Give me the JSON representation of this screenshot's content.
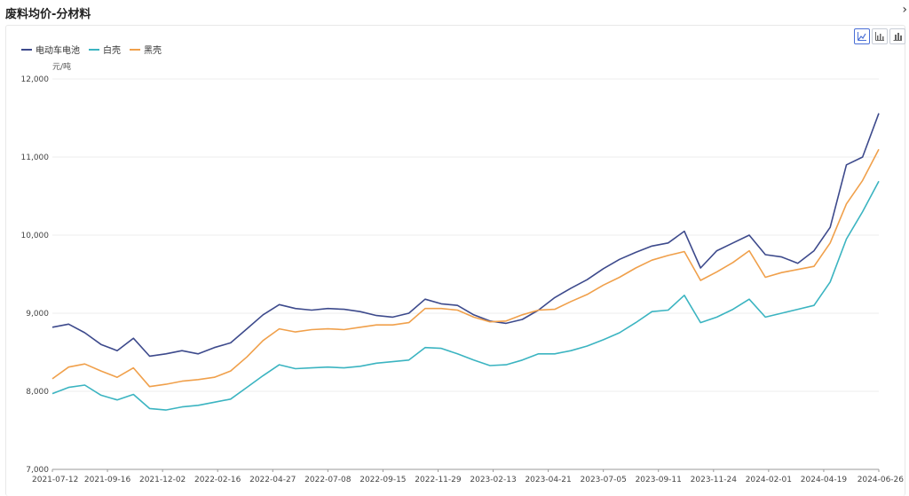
{
  "page": {
    "title": "废料均价-分材料",
    "close_icon": "close-icon"
  },
  "toolbar": {
    "buttons": [
      {
        "name": "line-chart-button",
        "icon": "line-chart-icon",
        "active": true
      },
      {
        "name": "bar-chart-button",
        "icon": "bar-chart-icon",
        "active": false
      },
      {
        "name": "stacked-bar-chart-button",
        "icon": "stacked-bar-chart-icon",
        "active": false
      }
    ]
  },
  "chart_data": {
    "type": "line",
    "title": "废料均价-分材料",
    "ylabel": "元/吨",
    "ylim": [
      7000,
      12000
    ],
    "yticks": [
      "12,000",
      "11,000",
      "10,000",
      "9,000",
      "8,000",
      "7,000"
    ],
    "xticks": [
      "2021-07-12",
      "2021-09-16",
      "2021-12-02",
      "2022-02-16",
      "2022-04-27",
      "2022-07-08",
      "2022-09-15",
      "2022-11-29",
      "2023-02-13",
      "2023-04-21",
      "2023-07-05",
      "2023-09-11",
      "2023-11-24",
      "2024-02-01",
      "2024-04-19",
      "2024-06-26"
    ],
    "legend_position": "top-left",
    "grid": true,
    "series": [
      {
        "name": "电动车电池",
        "color": "#3d4a8c",
        "values": [
          8820,
          8860,
          8750,
          8600,
          8520,
          8680,
          8450,
          8480,
          8520,
          8480,
          8560,
          8620,
          8800,
          8980,
          9110,
          9060,
          9040,
          9060,
          9050,
          9020,
          8970,
          8950,
          9000,
          9180,
          9120,
          9100,
          8980,
          8900,
          8870,
          8920,
          9040,
          9200,
          9320,
          9430,
          9570,
          9690,
          9780,
          9860,
          9900,
          10050,
          9580,
          9800,
          9900,
          10000,
          9750,
          9720,
          9640,
          9800,
          10100,
          10900,
          11000,
          11560
        ]
      },
      {
        "name": "白壳",
        "color": "#3bb4c1",
        "values": [
          7970,
          8050,
          8080,
          7950,
          7890,
          7960,
          7780,
          7760,
          7800,
          7820,
          7860,
          7900,
          8050,
          8200,
          8340,
          8290,
          8300,
          8310,
          8300,
          8320,
          8360,
          8380,
          8400,
          8560,
          8550,
          8480,
          8400,
          8330,
          8340,
          8400,
          8480,
          8480,
          8520,
          8580,
          8660,
          8750,
          8880,
          9020,
          9040,
          9230,
          8880,
          8950,
          9050,
          9180,
          8950,
          9000,
          9050,
          9100,
          9400,
          9950,
          10300,
          10690
        ]
      },
      {
        "name": "黑壳",
        "color": "#f0a04b",
        "values": [
          8160,
          8310,
          8350,
          8260,
          8180,
          8300,
          8060,
          8090,
          8130,
          8150,
          8180,
          8260,
          8440,
          8650,
          8800,
          8760,
          8790,
          8800,
          8790,
          8820,
          8850,
          8850,
          8880,
          9060,
          9060,
          9040,
          8950,
          8890,
          8900,
          8980,
          9040,
          9050,
          9150,
          9240,
          9360,
          9460,
          9580,
          9680,
          9740,
          9790,
          9420,
          9530,
          9650,
          9800,
          9460,
          9520,
          9560,
          9600,
          9900,
          10400,
          10700,
          11100
        ]
      }
    ]
  }
}
